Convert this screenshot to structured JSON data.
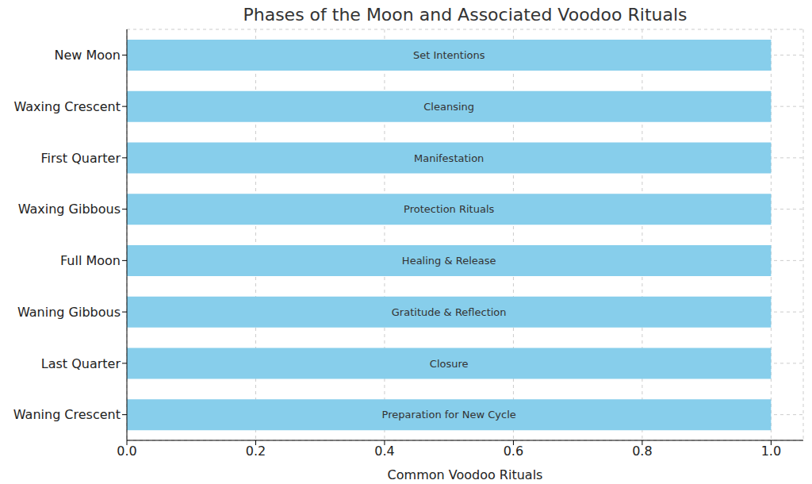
{
  "chart_data": {
    "type": "bar",
    "title": "Phases of the Moon and Associated Voodoo Rituals",
    "orientation": "horizontal",
    "categories": [
      "New Moon",
      "Waxing Crescent",
      "First Quarter",
      "Waxing Gibbous",
      "Full Moon",
      "Waning Gibbous",
      "Last Quarter",
      "Waning Crescent"
    ],
    "values": [
      1,
      1,
      1,
      1,
      1,
      1,
      1,
      1
    ],
    "annotations": [
      "Set Intentions",
      "Cleansing",
      "Manifestation",
      "Protection Rituals",
      "Healing & Release",
      "Gratitude & Reflection",
      "Closure",
      "Preparation for New Cycle"
    ],
    "xlabel": "Common Voodoo Rituals",
    "color": "#87ceeb",
    "xlim": [
      0,
      1.05
    ],
    "xticks": [
      {
        "value": 0,
        "label": "0.0"
      },
      0.2,
      0.4,
      0.6,
      0.8,
      {
        "value": 1,
        "label": "1.0"
      }
    ],
    "grid": true
  }
}
